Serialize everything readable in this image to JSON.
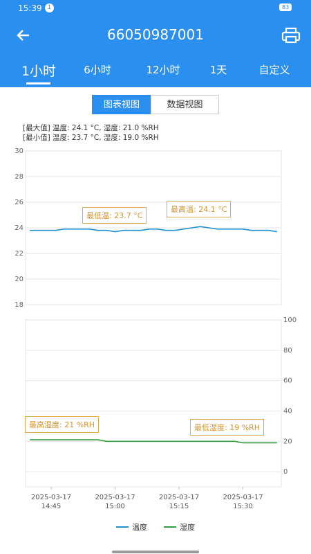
{
  "status_bar": {
    "time": "15:39",
    "badge": "1",
    "battery": "83"
  },
  "header": {
    "title": "66050987001"
  },
  "tabs": [
    "1小时",
    "6小时",
    "12小时",
    "1天",
    "自定义"
  ],
  "view_toggle": [
    "图表视图",
    "数据视图"
  ],
  "summary": [
    "[最大值] 温度: 24.1 °C, 湿度: 21.0 %RH",
    "[最小值] 温度: 23.7 °C, 湿度: 19.0 %RH"
  ],
  "chart_data": [
    {
      "type": "line",
      "y_axis_position": "left",
      "grid": true,
      "xlim": [
        "2025-03-17 14:39",
        "2025-03-17 15:39"
      ],
      "x": [
        "2025-03-17 14:40",
        "2025-03-17 14:42",
        "2025-03-17 14:44",
        "2025-03-17 14:46",
        "2025-03-17 14:48",
        "2025-03-17 14:50",
        "2025-03-17 14:52",
        "2025-03-17 14:54",
        "2025-03-17 14:56",
        "2025-03-17 14:58",
        "2025-03-17 15:00",
        "2025-03-17 15:02",
        "2025-03-17 15:04",
        "2025-03-17 15:06",
        "2025-03-17 15:08",
        "2025-03-17 15:10",
        "2025-03-17 15:12",
        "2025-03-17 15:14",
        "2025-03-17 15:16",
        "2025-03-17 15:18",
        "2025-03-17 15:20",
        "2025-03-17 15:22",
        "2025-03-17 15:24",
        "2025-03-17 15:26",
        "2025-03-17 15:28",
        "2025-03-17 15:30",
        "2025-03-17 15:32",
        "2025-03-17 15:34",
        "2025-03-17 15:36",
        "2025-03-17 15:38"
      ],
      "ylim": [
        18,
        30
      ],
      "yticks": [
        18,
        20,
        22,
        24,
        26,
        28,
        30
      ],
      "series": [
        {
          "name": "温度",
          "color": "#1f8fd0",
          "values": [
            23.8,
            23.8,
            23.8,
            23.8,
            23.9,
            23.9,
            23.9,
            23.9,
            23.8,
            23.8,
            23.7,
            23.8,
            23.8,
            23.8,
            23.9,
            23.9,
            23.8,
            23.8,
            23.9,
            24.0,
            24.1,
            24.0,
            23.9,
            23.9,
            23.9,
            23.9,
            23.8,
            23.8,
            23.8,
            23.7
          ]
        }
      ],
      "annotations": [
        "最低温: 23.7 °C",
        "最高温: 24.1 °C"
      ]
    },
    {
      "type": "line",
      "y_axis_position": "right",
      "grid": true,
      "xlim": [
        "2025-03-17 14:39",
        "2025-03-17 15:39"
      ],
      "x": [
        "2025-03-17 14:40",
        "2025-03-17 14:42",
        "2025-03-17 14:44",
        "2025-03-17 14:46",
        "2025-03-17 14:48",
        "2025-03-17 14:50",
        "2025-03-17 14:52",
        "2025-03-17 14:54",
        "2025-03-17 14:56",
        "2025-03-17 14:58",
        "2025-03-17 15:00",
        "2025-03-17 15:02",
        "2025-03-17 15:04",
        "2025-03-17 15:06",
        "2025-03-17 15:08",
        "2025-03-17 15:10",
        "2025-03-17 15:12",
        "2025-03-17 15:14",
        "2025-03-17 15:16",
        "2025-03-17 15:18",
        "2025-03-17 15:20",
        "2025-03-17 15:22",
        "2025-03-17 15:24",
        "2025-03-17 15:26",
        "2025-03-17 15:28",
        "2025-03-17 15:30",
        "2025-03-17 15:32",
        "2025-03-17 15:34",
        "2025-03-17 15:36",
        "2025-03-17 15:38"
      ],
      "xticks": [
        "2025-03-17 14:45",
        "2025-03-17 15:00",
        "2025-03-17 15:15",
        "2025-03-17 15:30"
      ],
      "ylim": [
        -10,
        100
      ],
      "yticks": [
        0,
        20,
        40,
        60,
        80,
        100
      ],
      "series": [
        {
          "name": "湿度",
          "color": "#2e9e3e",
          "values": [
            21,
            21,
            21,
            21,
            21,
            21,
            21,
            21,
            21,
            20,
            20,
            20,
            20,
            20,
            20,
            20,
            20,
            20,
            20,
            20,
            20,
            20,
            20,
            20,
            20,
            19,
            19,
            19,
            19,
            19
          ]
        }
      ],
      "annotations": [
        "最高湿度: 21 %RH",
        "最低湿度: 19 %RH"
      ]
    }
  ]
}
